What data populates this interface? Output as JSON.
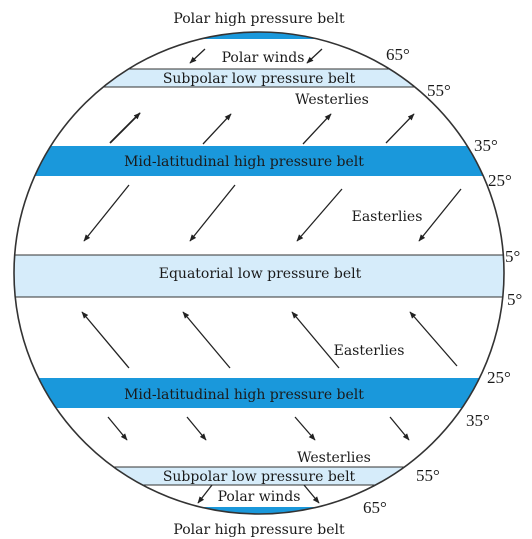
{
  "colors": {
    "dark_belt": "#1a98db",
    "light_belt": "#d6ecfa",
    "outline": "#333333",
    "arrow": "#222222"
  },
  "captions": {
    "polar_high_top": "Polar high pressure belt",
    "polar_high_bottom": "Polar high pressure belt"
  },
  "belts": {
    "subpolar_low_north": "Subpolar low pressure belt",
    "mid_high_north": "Mid-latitudinal high pressure belt",
    "equatorial_low": "Equatorial low pressure belt",
    "mid_high_south": "Mid-latitudinal high pressure belt",
    "subpolar_low_south": "Subpolar low pressure belt"
  },
  "winds": {
    "polar_north": "Polar winds",
    "westerlies_north": "Westerlies",
    "easterlies_north": "Easterlies",
    "easterlies_south": "Easterlies",
    "westerlies_south": "Westerlies",
    "polar_south": "Polar winds"
  },
  "latitudes": {
    "n65": "65°",
    "n55": "55°",
    "n35": "35°",
    "n25": "25°",
    "n5": "5°",
    "s5": "5°",
    "s25": "25°",
    "s35": "35°",
    "s55": "55°",
    "s65": "65°"
  }
}
